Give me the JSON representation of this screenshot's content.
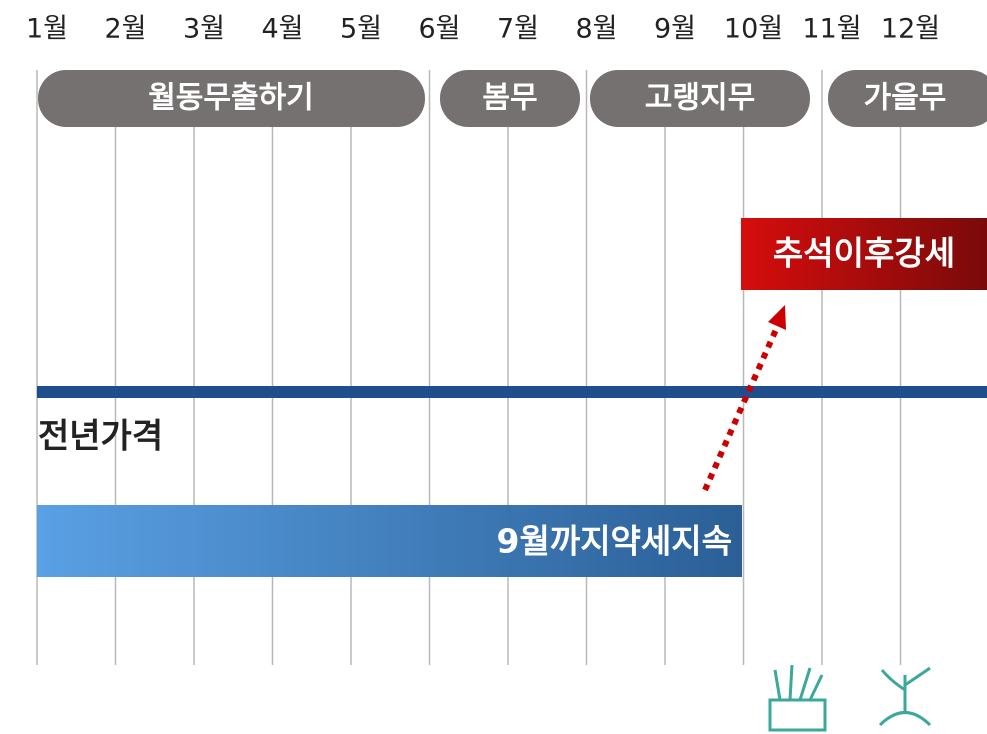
{
  "months": [
    "1월",
    "2월",
    "3월",
    "4월",
    "5월",
    "6월",
    "7월",
    "8월",
    "9월",
    "10월",
    "11월",
    "12월"
  ],
  "seasons": [
    "월동무출하기",
    "봄무",
    "고랭지무",
    "가을무"
  ],
  "annotations": {
    "rise": "추석이후강세",
    "previous_year": "전년가격",
    "weak": "9월까지약세지속"
  }
}
